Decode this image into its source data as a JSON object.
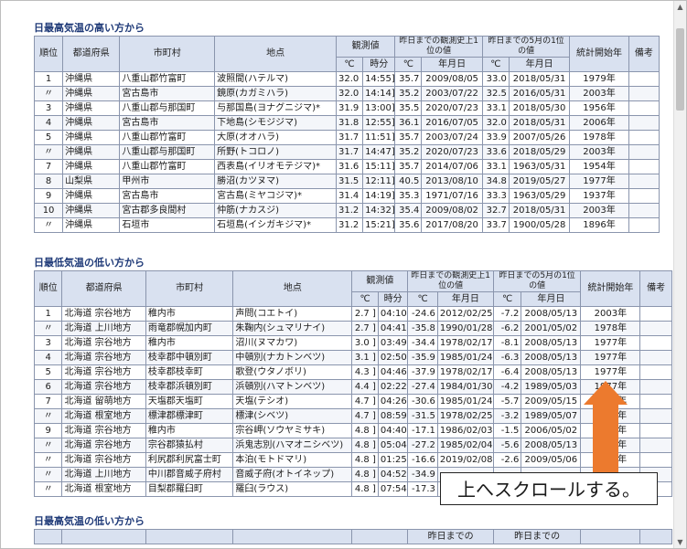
{
  "sections": {
    "high_max": {
      "title": "日最高気温の高い方から",
      "headers": {
        "rank": "順位",
        "pref": "都道府県",
        "city": "市町村",
        "station": "地点",
        "obs": "観測値",
        "record": "昨日までの観測史上1位の値",
        "may": "昨日までの5月の1位の値",
        "start": "統計開始年",
        "note": "備考",
        "unit_c": "℃",
        "unit_time": "時分",
        "unit_date": "年月日"
      },
      "rows": [
        [
          "1",
          "沖縄県",
          "八重山郡竹富町",
          "波照間(ハテルマ)",
          "32.0 ]",
          "14:55]",
          "35.7",
          "2009/08/05",
          "33.0",
          "2018/05/31",
          "1979年"
        ],
        [
          "〃",
          "沖縄県",
          "宮古島市",
          "鏡原(カガミハラ)",
          "32.0 ]",
          "14:14]",
          "35.2",
          "2003/07/22",
          "32.5",
          "2016/05/31",
          "2003年"
        ],
        [
          "3",
          "沖縄県",
          "八重山郡与那国町",
          "与那国島(ヨナグニジマ)*",
          "31.9 ]",
          "13:00]",
          "35.5",
          "2020/07/23",
          "33.1",
          "2018/05/30",
          "1956年"
        ],
        [
          "4",
          "沖縄県",
          "宮古島市",
          "下地島(シモジジマ)",
          "31.8 ]",
          "12:55]",
          "36.1",
          "2016/07/05",
          "32.0",
          "2018/05/31",
          "2006年"
        ],
        [
          "5",
          "沖縄県",
          "八重山郡竹富町",
          "大原(オオハラ)",
          "31.7 ]",
          "11:51]",
          "35.7",
          "2003/07/24",
          "33.9",
          "2007/05/26",
          "1978年"
        ],
        [
          "〃",
          "沖縄県",
          "八重山郡与那国町",
          "所野(トコロノ)",
          "31.7 ]",
          "14:47]",
          "35.2",
          "2020/07/23",
          "33.6",
          "2018/05/29",
          "2003年"
        ],
        [
          "7",
          "沖縄県",
          "八重山郡竹富町",
          "西表島(イリオモテジマ)*",
          "31.6 ]",
          "15:11]",
          "35.7",
          "2014/07/06",
          "33.1",
          "1963/05/31",
          "1954年"
        ],
        [
          "8",
          "山梨県",
          "甲州市",
          "勝沼(カツヌマ)",
          "31.5 ]",
          "12:11]",
          "40.5",
          "2013/08/10",
          "34.8",
          "2019/05/27",
          "1977年"
        ],
        [
          "9",
          "沖縄県",
          "宮古島市",
          "宮古島(ミヤコジマ)*",
          "31.4 ]",
          "14:19]",
          "35.3",
          "1971/07/16",
          "33.3",
          "1963/05/29",
          "1937年"
        ],
        [
          "10",
          "沖縄県",
          "宮古郡多良間村",
          "仲筋(ナカスジ)",
          "31.2 ]",
          "14:32]",
          "35.4",
          "2009/08/02",
          "32.7",
          "2018/05/31",
          "2003年"
        ],
        [
          "〃",
          "沖縄県",
          "石垣市",
          "石垣島(イシガキジマ)*",
          "31.2 ]",
          "15:21]",
          "35.6",
          "2017/08/20",
          "33.7",
          "1900/05/28",
          "1896年"
        ]
      ]
    },
    "low_min": {
      "title": "日最低気温の低い方から",
      "headers": {
        "rank": "順位",
        "pref": "都道府県",
        "city": "市町村",
        "station": "地点",
        "obs": "観測値",
        "record": "昨日までの観測史上1位の値",
        "may": "昨日までの5月の1位の値",
        "start": "統計開始年",
        "note": "備考",
        "unit_c": "℃",
        "unit_time": "時分",
        "unit_date": "年月日"
      },
      "rows": [
        [
          "1",
          "北海道 宗谷地方",
          "稚内市",
          "声問(コエトイ)",
          "2.7 ]",
          "04:10]",
          "-24.6",
          "2012/02/25",
          "-7.2",
          "2008/05/13",
          "2003年"
        ],
        [
          "〃",
          "北海道 上川地方",
          "雨竜郡幌加内町",
          "朱鞠内(シュマリナイ)",
          "2.7 ]",
          "04:41]",
          "-35.8",
          "1990/01/28",
          "-6.2",
          "2001/05/02",
          "1978年"
        ],
        [
          "3",
          "北海道 宗谷地方",
          "稚内市",
          "沼川(ヌマカワ)",
          "3.0 ]",
          "03:49]",
          "-34.4",
          "1978/02/17",
          "-8.1",
          "2008/05/13",
          "1977年"
        ],
        [
          "4",
          "北海道 宗谷地方",
          "枝幸郡中頓別町",
          "中頓別(ナカトンベツ)",
          "3.1 ]",
          "02:50]",
          "-35.9",
          "1985/01/24",
          "-6.3",
          "2008/05/13",
          "1977年"
        ],
        [
          "5",
          "北海道 宗谷地方",
          "枝幸郡枝幸町",
          "歌登(ウタノボリ)",
          "4.3 ]",
          "04:46]",
          "-37.9",
          "1978/02/17",
          "-6.4",
          "2008/05/13",
          "1977年"
        ],
        [
          "6",
          "北海道 宗谷地方",
          "枝幸郡浜頓別町",
          "浜頓別(ハマトンベツ)",
          "4.4 ]",
          "02:22]",
          "-27.4",
          "1984/01/30",
          "-4.2",
          "1989/05/03",
          "1977年"
        ],
        [
          "7",
          "北海道 留萌地方",
          "天塩郡天塩町",
          "天塩(テシオ)",
          "4.7 ]",
          "04:26]",
          "-30.6",
          "1985/01/24",
          "-5.7",
          "2009/05/15",
          "1977年"
        ],
        [
          "〃",
          "北海道 根室地方",
          "標津郡標津町",
          "標津(シベツ)",
          "4.7 ]",
          "08:59]",
          "-31.5",
          "1978/02/25",
          "-3.2",
          "1989/05/07",
          "1977年"
        ],
        [
          "9",
          "北海道 宗谷地方",
          "稚内市",
          "宗谷岬(ソウヤミサキ)",
          "4.8 ]",
          "04:40]",
          "-17.1",
          "1986/02/03",
          "-1.5",
          "2006/05/02",
          "1977年"
        ],
        [
          "〃",
          "北海道 宗谷地方",
          "宗谷郡猿払村",
          "浜鬼志別(ハマオニシベツ)",
          "4.8 ]",
          "05:04]",
          "-27.2",
          "1985/02/04",
          "-5.6",
          "2008/05/13",
          "1977年"
        ],
        [
          "〃",
          "北海道 宗谷地方",
          "利尻郡利尻富士町",
          "本泊(モトドマリ)",
          "4.8 ]",
          "01:25]",
          "-16.6",
          "2019/02/08",
          "-2.6",
          "2009/05/06",
          "1977年"
        ],
        [
          "〃",
          "北海道 上川地方",
          "中川郡音威子府村",
          "音威子府(オトイネップ)",
          "4.8 ]",
          "04:52]",
          "-34.9",
          "",
          "",
          "",
          ""
        ],
        [
          "〃",
          "北海道 根室地方",
          "目梨郡羅臼町",
          "羅臼(ラウス)",
          "4.8 ]",
          "07:54]",
          "-17.3",
          "",
          "",
          "",
          ""
        ]
      ]
    },
    "low_max": {
      "title": "日最高気温の低い方から",
      "header_fragment_1": "昨日までの",
      "header_fragment_2": "昨日までの"
    }
  },
  "overlay": {
    "callout_text": "上へスクロールする。",
    "arrow_color": "#ec7a2e"
  },
  "scrollbar": {
    "up_icon": "▲",
    "down_icon": "▼"
  }
}
